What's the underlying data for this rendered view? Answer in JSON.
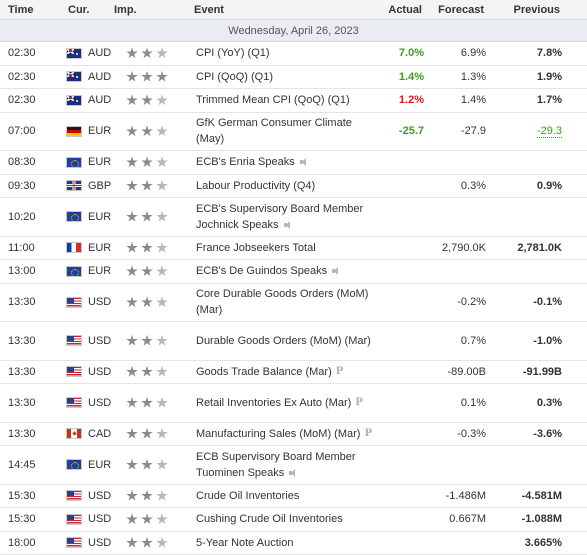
{
  "headers": {
    "time": "Time",
    "currency": "Cur.",
    "importance": "Imp.",
    "event": "Event",
    "actual": "Actual",
    "forecast": "Forecast",
    "previous": "Previous"
  },
  "date_label": "Wednesday, April 26, 2023",
  "colors": {
    "positive": "#3aa01d",
    "negative": "#e01a1a",
    "star_on": "#8a8a8a",
    "star_off": "#b7b7b7"
  },
  "events": [
    {
      "time": "02:30",
      "flag": "au",
      "currency": "AUD",
      "stars": 2,
      "event": "CPI (YoY) (Q1)",
      "icon": "",
      "actual": "7.0%",
      "actual_color": "green",
      "forecast": "6.9%",
      "previous": "7.8%",
      "previous_style": ""
    },
    {
      "time": "02:30",
      "flag": "au",
      "currency": "AUD",
      "stars": 3,
      "event": "CPI (QoQ) (Q1)",
      "icon": "",
      "actual": "1.4%",
      "actual_color": "green",
      "forecast": "1.3%",
      "previous": "1.9%",
      "previous_style": ""
    },
    {
      "time": "02:30",
      "flag": "au",
      "currency": "AUD",
      "stars": 2,
      "event": "Trimmed Mean CPI (QoQ) (Q1)",
      "icon": "",
      "actual": "1.2%",
      "actual_color": "red",
      "forecast": "1.4%",
      "previous": "1.7%",
      "previous_style": ""
    },
    {
      "time": "07:00",
      "flag": "de",
      "currency": "EUR",
      "stars": 2,
      "event": "GfK German Consumer Climate (May)",
      "icon": "",
      "actual": "-25.7",
      "actual_color": "green",
      "forecast": "-27.9",
      "previous": "-29.3",
      "previous_style": "revised"
    },
    {
      "time": "08:30",
      "flag": "eu",
      "currency": "EUR",
      "stars": 2,
      "event": "ECB's Enria Speaks",
      "icon": "speaker",
      "actual": "",
      "actual_color": "",
      "forecast": "",
      "previous": "",
      "previous_style": ""
    },
    {
      "time": "09:30",
      "flag": "gb",
      "currency": "GBP",
      "stars": 2,
      "event": "Labour Productivity (Q4)",
      "icon": "",
      "actual": "",
      "actual_color": "",
      "forecast": "0.3%",
      "previous": "0.9%",
      "previous_style": ""
    },
    {
      "time": "10:20",
      "flag": "eu",
      "currency": "EUR",
      "stars": 2,
      "event": "ECB's Supervisory Board Member Jochnick Speaks",
      "icon": "speaker",
      "actual": "",
      "actual_color": "",
      "forecast": "",
      "previous": "",
      "previous_style": ""
    },
    {
      "time": "11:00",
      "flag": "fr",
      "currency": "EUR",
      "stars": 2,
      "event": "France Jobseekers Total",
      "icon": "",
      "actual": "",
      "actual_color": "",
      "forecast": "2,790.0K",
      "previous": "2,781.0K",
      "previous_style": ""
    },
    {
      "time": "13:00",
      "flag": "eu",
      "currency": "EUR",
      "stars": 2,
      "event": "ECB's De Guindos Speaks",
      "icon": "speaker",
      "actual": "",
      "actual_color": "",
      "forecast": "",
      "previous": "",
      "previous_style": ""
    },
    {
      "time": "13:30",
      "flag": "us",
      "currency": "USD",
      "stars": 2,
      "event": "Core Durable Goods Orders (MoM) (Mar)",
      "icon": "",
      "actual": "",
      "actual_color": "",
      "forecast": "-0.2%",
      "previous": "-0.1%",
      "previous_style": ""
    },
    {
      "time": "13:30",
      "flag": "us",
      "currency": "USD",
      "stars": 2,
      "event": "Durable Goods Orders (MoM) (Mar)",
      "icon": "",
      "actual": "",
      "actual_color": "",
      "forecast": "0.7%",
      "previous": "-1.0%",
      "previous_style": ""
    },
    {
      "time": "13:30",
      "flag": "us",
      "currency": "USD",
      "stars": 2,
      "event": "Goods Trade Balance (Mar)",
      "icon": "P",
      "actual": "",
      "actual_color": "",
      "forecast": "-89.00B",
      "previous": "-91.99B",
      "previous_style": ""
    },
    {
      "time": "13:30",
      "flag": "us",
      "currency": "USD",
      "stars": 2,
      "event": "Retail Inventories Ex Auto (Mar)",
      "icon": "P",
      "actual": "",
      "actual_color": "",
      "forecast": "0.1%",
      "previous": "0.3%",
      "previous_style": ""
    },
    {
      "time": "13:30",
      "flag": "ca",
      "currency": "CAD",
      "stars": 2,
      "event": "Manufacturing Sales (MoM) (Mar)",
      "icon": "P",
      "actual": "",
      "actual_color": "",
      "forecast": "-0.3%",
      "previous": "-3.6%",
      "previous_style": ""
    },
    {
      "time": "14:45",
      "flag": "eu",
      "currency": "EUR",
      "stars": 2,
      "event": "ECB Supervisory Board Member Tuominen Speaks",
      "icon": "speaker",
      "actual": "",
      "actual_color": "",
      "forecast": "",
      "previous": "",
      "previous_style": ""
    },
    {
      "time": "15:30",
      "flag": "us",
      "currency": "USD",
      "stars": 2,
      "event": "Crude Oil Inventories",
      "icon": "",
      "actual": "",
      "actual_color": "",
      "forecast": "-1.486M",
      "previous": "-4.581M",
      "previous_style": ""
    },
    {
      "time": "15:30",
      "flag": "us",
      "currency": "USD",
      "stars": 2,
      "event": "Cushing Crude Oil Inventories",
      "icon": "",
      "actual": "",
      "actual_color": "",
      "forecast": "0.667M",
      "previous": "-1.088M",
      "previous_style": ""
    },
    {
      "time": "18:00",
      "flag": "us",
      "currency": "USD",
      "stars": 2,
      "event": "5-Year Note Auction",
      "icon": "",
      "actual": "",
      "actual_color": "",
      "forecast": "",
      "previous": "3.665%",
      "previous_style": ""
    }
  ]
}
